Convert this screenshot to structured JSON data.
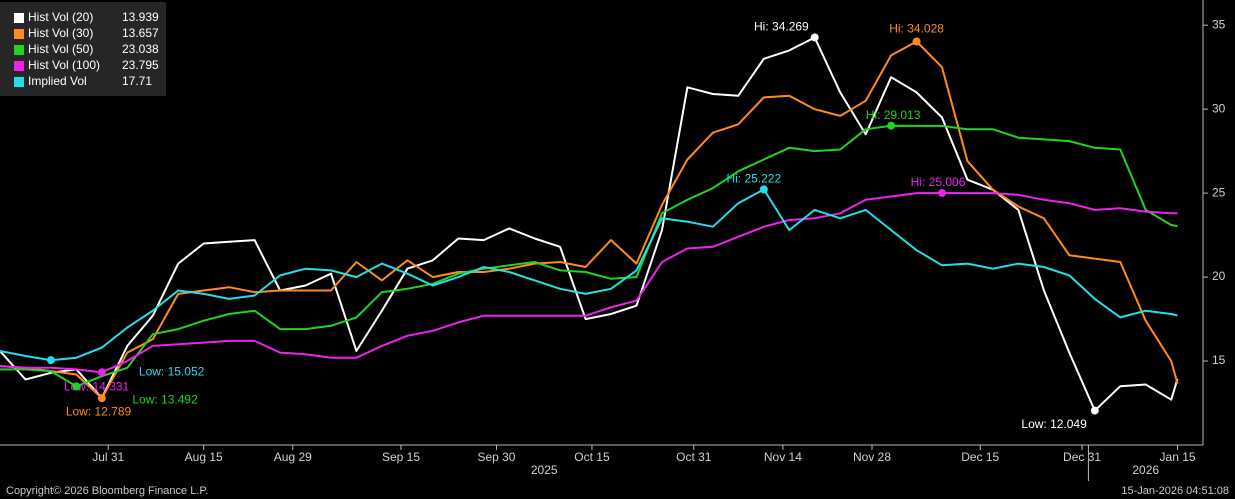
{
  "chart_data": {
    "type": "line",
    "x": [
      "2025-07-14",
      "2025-07-18",
      "2025-07-22",
      "2025-07-26",
      "2025-07-30",
      "2025-08-03",
      "2025-08-07",
      "2025-08-11",
      "2025-08-15",
      "2025-08-19",
      "2025-08-23",
      "2025-08-27",
      "2025-08-31",
      "2025-09-04",
      "2025-09-08",
      "2025-09-12",
      "2025-09-16",
      "2025-09-20",
      "2025-09-24",
      "2025-09-28",
      "2025-10-02",
      "2025-10-06",
      "2025-10-10",
      "2025-10-14",
      "2025-10-18",
      "2025-10-22",
      "2025-10-26",
      "2025-10-30",
      "2025-11-03",
      "2025-11-07",
      "2025-11-11",
      "2025-11-15",
      "2025-11-19",
      "2025-11-23",
      "2025-11-27",
      "2025-12-01",
      "2025-12-05",
      "2025-12-09",
      "2025-12-13",
      "2025-12-17",
      "2025-12-21",
      "2025-12-25",
      "2025-12-29",
      "2026-01-02",
      "2026-01-06",
      "2026-01-10",
      "2026-01-14",
      "2026-01-15"
    ],
    "series": [
      {
        "name": "Hist Vol (20)",
        "last": 13.939,
        "color": "#ffffff",
        "values": [
          15.6,
          13.9,
          14.3,
          14.5,
          12.8,
          15.9,
          17.7,
          20.8,
          22.0,
          22.1,
          22.2,
          19.2,
          19.5,
          20.2,
          15.6,
          18.0,
          20.5,
          21.0,
          22.3,
          22.2,
          22.9,
          22.3,
          21.8,
          17.5,
          17.8,
          18.3,
          22.8,
          31.3,
          30.9,
          30.8,
          33.0,
          33.5,
          34.269,
          31.0,
          28.5,
          31.9,
          31.0,
          29.5,
          25.8,
          25.2,
          24.0,
          19.2,
          15.5,
          12.049,
          13.5,
          13.6,
          12.7,
          13.939
        ]
      },
      {
        "name": "Hist Vol (30)",
        "last": 13.657,
        "color": "#ff8c1a",
        "values": [
          14.7,
          14.6,
          14.4,
          14.2,
          12.789,
          15.5,
          16.3,
          19.0,
          19.2,
          19.4,
          19.1,
          19.2,
          19.2,
          19.2,
          20.9,
          19.8,
          21.0,
          20.0,
          20.3,
          20.3,
          20.5,
          20.8,
          20.9,
          20.6,
          22.2,
          20.8,
          24.3,
          27.0,
          28.6,
          29.1,
          30.7,
          30.8,
          30.0,
          29.6,
          30.5,
          33.2,
          34.028,
          32.5,
          26.9,
          25.2,
          24.2,
          23.5,
          21.3,
          21.1,
          20.9,
          17.4,
          15.0,
          13.657
        ]
      },
      {
        "name": "Hist Vol (50)",
        "last": 23.038,
        "color": "#22d422",
        "values": [
          14.5,
          14.5,
          14.4,
          13.492,
          14.1,
          14.6,
          16.6,
          16.9,
          17.4,
          17.8,
          18.0,
          16.9,
          16.9,
          17.1,
          17.6,
          19.1,
          19.3,
          19.6,
          20.2,
          20.5,
          20.7,
          20.9,
          20.4,
          20.3,
          19.9,
          20.0,
          23.8,
          24.6,
          25.3,
          26.3,
          27.0,
          27.7,
          27.5,
          27.6,
          28.8,
          29.013,
          29.0,
          29.0,
          28.8,
          28.8,
          28.3,
          28.2,
          28.1,
          27.7,
          27.6,
          24.0,
          23.1,
          23.038
        ]
      },
      {
        "name": "Hist Vol (100)",
        "last": 23.795,
        "color": "#ee22ee",
        "values": [
          14.7,
          14.6,
          14.6,
          14.5,
          14.331,
          15.0,
          15.9,
          16.0,
          16.1,
          16.2,
          16.2,
          15.5,
          15.4,
          15.2,
          15.2,
          15.9,
          16.5,
          16.8,
          17.3,
          17.7,
          17.7,
          17.7,
          17.7,
          17.7,
          18.2,
          18.6,
          20.9,
          21.7,
          21.8,
          22.4,
          23.0,
          23.4,
          23.5,
          23.8,
          24.6,
          24.8,
          25.0,
          25.006,
          25.0,
          25.0,
          24.9,
          24.6,
          24.4,
          24.0,
          24.1,
          23.9,
          23.8,
          23.795
        ]
      },
      {
        "name": "Implied Vol",
        "last": 17.71,
        "color": "#22e0e8",
        "values": [
          15.6,
          15.3,
          15.052,
          15.2,
          15.8,
          17.0,
          18.0,
          19.2,
          19.0,
          18.7,
          18.9,
          20.1,
          20.5,
          20.4,
          20.0,
          20.8,
          20.2,
          19.5,
          20.0,
          20.6,
          20.3,
          19.8,
          19.3,
          19.0,
          19.3,
          20.4,
          23.5,
          23.3,
          23.0,
          24.4,
          25.222,
          22.8,
          24.0,
          23.5,
          24.0,
          22.8,
          21.6,
          20.7,
          20.8,
          20.5,
          20.8,
          20.6,
          20.1,
          18.7,
          17.6,
          18.0,
          17.8,
          17.71
        ]
      }
    ],
    "annotations": [
      {
        "series": 0,
        "index": 32,
        "label": "Hi: 34.269"
      },
      {
        "series": 1,
        "index": 36,
        "label": "Hi: 34.028"
      },
      {
        "series": 2,
        "index": 35,
        "label": "Hi: 29.013"
      },
      {
        "series": 4,
        "index": 30,
        "label": "Hi: 25.222"
      },
      {
        "series": 3,
        "index": 37,
        "label": "Hi: 25.006"
      },
      {
        "series": 4,
        "index": 2,
        "label": "Low: 15.052"
      },
      {
        "series": 3,
        "index": 4,
        "label": "Low: 14.331"
      },
      {
        "series": 2,
        "index": 3,
        "label": "Low: 13.492"
      },
      {
        "series": 1,
        "index": 4,
        "label": "Low: 12.789"
      },
      {
        "series": 0,
        "index": 43,
        "label": "Low: 12.049"
      }
    ],
    "xlim": [
      "2025-07-14",
      "2026-01-19"
    ],
    "xticks": [
      {
        "value": "2025-07-31",
        "label": "Jul 31"
      },
      {
        "value": "2025-08-15",
        "label": "Aug 15"
      },
      {
        "value": "2025-08-29",
        "label": "Aug 29"
      },
      {
        "value": "2025-09-15",
        "label": "Sep 15"
      },
      {
        "value": "2025-09-30",
        "label": "Sep 30"
      },
      {
        "value": "2025-10-15",
        "label": "Oct 15"
      },
      {
        "value": "2025-10-31",
        "label": "Oct 31"
      },
      {
        "value": "2025-11-14",
        "label": "Nov 14"
      },
      {
        "value": "2025-11-28",
        "label": "Nov 28"
      },
      {
        "value": "2025-12-15",
        "label": "Dec 15"
      },
      {
        "value": "2025-12-31",
        "label": "Dec 31"
      },
      {
        "value": "2026-01-15",
        "label": "Jan 15"
      }
    ],
    "years": [
      "2025",
      "2026"
    ],
    "ylim": [
      10,
      36.5
    ],
    "yticks": [
      15,
      20,
      25,
      30,
      35
    ],
    "copyright": "Copyright© 2026 Bloomberg Finance L.P.",
    "timestamp": "15-Jan-2026 04:51:08"
  }
}
